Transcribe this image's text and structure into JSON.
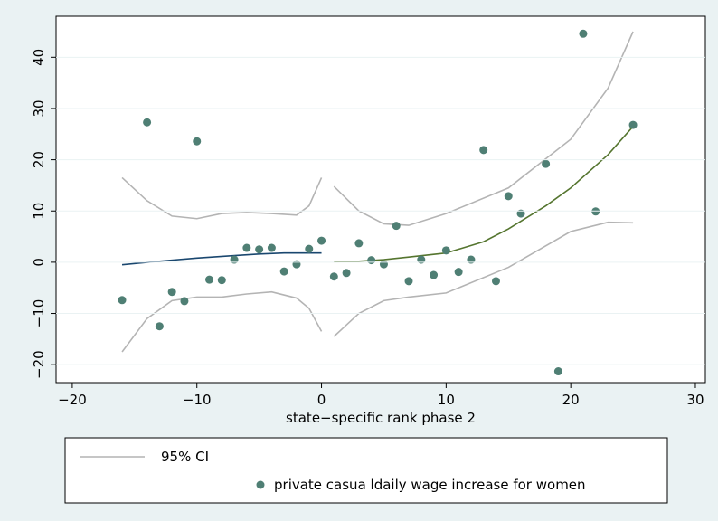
{
  "chart_data": {
    "type": "scatter",
    "x_label": "state−specific rank phase 2",
    "xlim": [
      -21.3,
      30.8
    ],
    "ylim": [
      -23.5,
      48
    ],
    "xticks": [
      {
        "value": -20,
        "label": "−20"
      },
      {
        "value": -10,
        "label": "−10"
      },
      0,
      10,
      20,
      30
    ],
    "yticks": [
      {
        "value": -20,
        "label": "−20"
      },
      {
        "value": -10,
        "label": "−10"
      },
      0,
      10,
      20,
      30,
      40
    ],
    "grid": true,
    "series": [
      {
        "name": "95% CI",
        "type": "line",
        "color": "#b4b4b4",
        "x": [
          -16,
          -14,
          -12,
          -10,
          -8,
          -6,
          -4,
          -2,
          -1,
          0
        ],
        "values": [
          16.5,
          12,
          9,
          8.5,
          9.5,
          9.7,
          9.5,
          9.2,
          11,
          16.5
        ]
      },
      {
        "type": "line",
        "color": "#b4b4b4",
        "x": [
          -16,
          -14,
          -12,
          -10,
          -8,
          -6,
          -4,
          -2,
          -1,
          0
        ],
        "values": [
          -17.5,
          -11,
          -7.5,
          -6.8,
          -6.8,
          -6.2,
          -5.8,
          -7,
          -9,
          -13.5
        ]
      },
      {
        "type": "line",
        "color": "#b4b4b4",
        "x": [
          1,
          3,
          5,
          7,
          10,
          15,
          20,
          23,
          25
        ],
        "values": [
          14.8,
          10,
          7.5,
          7.2,
          9.5,
          14.5,
          24,
          34,
          45
        ]
      },
      {
        "type": "line",
        "color": "#b4b4b4",
        "x": [
          1,
          3,
          5,
          7,
          10,
          15,
          20,
          23,
          25
        ],
        "values": [
          -14.5,
          -10,
          -7.5,
          -6.8,
          -6,
          -1,
          6,
          7.8,
          7.7
        ]
      },
      {
        "type": "line",
        "color": "#1a476f",
        "x": [
          -16,
          -13,
          -10,
          -7,
          -5,
          -3,
          0
        ],
        "values": [
          -0.5,
          0.2,
          0.8,
          1.3,
          1.6,
          1.8,
          1.8
        ]
      },
      {
        "type": "line",
        "color": "#55752f",
        "x": [
          1,
          3,
          5,
          7,
          10,
          13,
          15,
          18,
          20,
          23,
          25
        ],
        "values": [
          0.1,
          0.2,
          0.5,
          1,
          1.8,
          4,
          6.5,
          11,
          14.5,
          21,
          26.5
        ]
      },
      {
        "name": "private casua ldaily wage increase for women",
        "type": "scatter",
        "color": "#4f7f74",
        "x": [
          -16,
          -14,
          -13,
          -12,
          -11,
          -10,
          -9,
          -8,
          -7,
          -6,
          -5,
          -4,
          -3,
          -2,
          -1,
          0,
          1,
          2,
          3,
          4,
          5,
          6,
          7,
          8,
          9,
          10,
          11,
          12,
          13,
          14,
          15,
          16,
          18,
          19,
          21,
          22,
          25
        ],
        "values": [
          -7.4,
          27.3,
          -12.5,
          -5.8,
          -7.6,
          23.6,
          -3.4,
          -3.5,
          0.5,
          2.8,
          2.5,
          2.8,
          -1.8,
          -0.4,
          2.6,
          4.2,
          -2.8,
          -2.1,
          3.7,
          0.4,
          -0.4,
          7.1,
          -3.7,
          0.5,
          -2.5,
          2.3,
          -1.9,
          0.5,
          21.9,
          -3.7,
          12.9,
          9.5,
          19.2,
          -21.3,
          44.6,
          9.9,
          26.8
        ]
      }
    ]
  }
}
